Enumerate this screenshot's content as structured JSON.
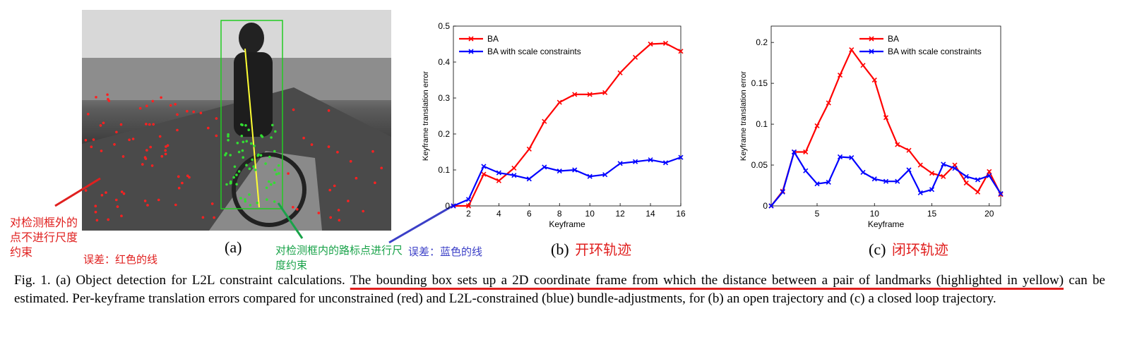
{
  "annotations": {
    "red_note": "对检测框外的点不进行尺度约束",
    "red_error": "误差：红色的线",
    "green_note": "对检测框内的路标点进行尺度约束",
    "blue_error": "误差：蓝色的线",
    "b_title": "开环轨迹",
    "c_title": "闭环轨迹"
  },
  "sublabels": {
    "a": "(a)",
    "b": "(b)",
    "c": "(c)"
  },
  "caption": {
    "part1": "Fig. 1.  (a) Object detection for L2L constraint calculations. ",
    "underlined": "The bounding box sets up a 2D coordinate frame from which the distance between a pair of landmarks (highlighted in yellow)",
    "part2": " can be estimated. Per-keyframe translation errors compared for unconstrained (red) and L2L-constrained (blue) bundle-adjustments, for (b) an open trajectory and (c) a closed loop trajectory."
  },
  "colors": {
    "red": "#ff0000",
    "blue": "#0000ff",
    "annotation_red": "#e0201f",
    "annotation_green": "#1aa34a",
    "annotation_blue": "#3b3fc7",
    "box_green": "#22cc22",
    "highlight_yellow": "#ffff33"
  },
  "chart_data": [
    {
      "type": "line",
      "xlabel": "Keyframe",
      "ylabel": "Keyframe translation error",
      "xlim": [
        1,
        16
      ],
      "ylim": [
        0,
        0.5
      ],
      "xticks": [
        2,
        4,
        6,
        8,
        10,
        12,
        14,
        16
      ],
      "yticks": [
        0,
        0.1,
        0.2,
        0.3,
        0.4,
        0.5
      ],
      "ytick_labels": [
        "0",
        "0.1",
        "0.2",
        "0.3",
        "0.4",
        "0.5"
      ],
      "legend": "top-left",
      "series": [
        {
          "name": "BA",
          "color": "#ff0000",
          "x": [
            1,
            2,
            3,
            4,
            5,
            6,
            7,
            8,
            9,
            10,
            11,
            12,
            13,
            14,
            15,
            16
          ],
          "y": [
            0,
            0,
            0.088,
            0.07,
            0.105,
            0.158,
            0.235,
            0.288,
            0.31,
            0.31,
            0.315,
            0.37,
            0.413,
            0.45,
            0.452,
            0.43
          ]
        },
        {
          "name": "BA with scale constraints",
          "color": "#0000ff",
          "x": [
            1,
            2,
            3,
            4,
            5,
            6,
            7,
            8,
            9,
            10,
            11,
            12,
            13,
            14,
            15,
            16
          ],
          "y": [
            0,
            0.018,
            0.11,
            0.092,
            0.085,
            0.075,
            0.108,
            0.097,
            0.1,
            0.082,
            0.087,
            0.118,
            0.123,
            0.128,
            0.12,
            0.135
          ]
        }
      ]
    },
    {
      "type": "line",
      "xlabel": "Keyframe",
      "ylabel": "Keyframe translation error",
      "xlim": [
        1,
        21
      ],
      "ylim": [
        0,
        0.22
      ],
      "xticks": [
        5,
        10,
        15,
        20
      ],
      "yticks": [
        0,
        0.05,
        0.1,
        0.15,
        0.2
      ],
      "ytick_labels": [
        "0",
        "0.05",
        "0.1",
        "0.15",
        "0.2"
      ],
      "legend": "top-right",
      "series": [
        {
          "name": "BA",
          "color": "#ff0000",
          "x": [
            1,
            2,
            3,
            4,
            5,
            6,
            7,
            8,
            9,
            10,
            11,
            12,
            13,
            14,
            15,
            16,
            17,
            18,
            19,
            20,
            21
          ],
          "y": [
            0,
            0.018,
            0.066,
            0.066,
            0.098,
            0.126,
            0.16,
            0.191,
            0.172,
            0.154,
            0.108,
            0.075,
            0.068,
            0.05,
            0.04,
            0.036,
            0.05,
            0.028,
            0.017,
            0.042,
            0.014
          ]
        },
        {
          "name": "BA with scale constraints",
          "color": "#0000ff",
          "x": [
            1,
            2,
            3,
            4,
            5,
            6,
            7,
            8,
            9,
            10,
            11,
            12,
            13,
            14,
            15,
            16,
            17,
            18,
            19,
            20,
            21
          ],
          "y": [
            0,
            0.017,
            0.066,
            0.043,
            0.027,
            0.029,
            0.06,
            0.059,
            0.041,
            0.033,
            0.03,
            0.03,
            0.044,
            0.016,
            0.02,
            0.051,
            0.046,
            0.036,
            0.032,
            0.037,
            0.015
          ]
        }
      ]
    }
  ]
}
